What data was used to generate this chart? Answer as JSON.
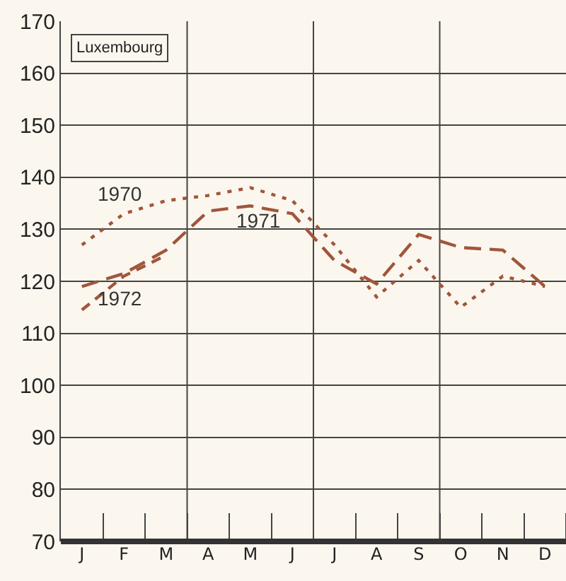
{
  "chart_data": {
    "type": "line",
    "title": "Luxembourg",
    "categories": [
      "J",
      "F",
      "M",
      "A",
      "M",
      "J",
      "J",
      "A",
      "S",
      "O",
      "N",
      "D"
    ],
    "series": [
      {
        "name": "1970",
        "color": "#a0563c",
        "line_style": "dotted",
        "values": [
          127,
          133,
          135.5,
          136.5,
          138,
          135.5,
          127,
          117,
          124,
          115,
          121,
          119
        ]
      },
      {
        "name": "1971",
        "color": "#a0563c",
        "line_style": "dashed",
        "values": [
          119,
          121.5,
          126,
          133.5,
          134.5,
          133,
          124,
          119.5,
          129,
          126.5,
          126,
          119
        ]
      },
      {
        "name": "1972",
        "color": "#a0563c",
        "line_style": "dashed",
        "values": [
          114.5,
          121,
          125,
          null,
          null,
          null,
          null,
          null,
          null,
          null,
          null,
          null
        ]
      }
    ],
    "ylim": [
      70,
      170
    ],
    "yticks": [
      70,
      80,
      90,
      100,
      110,
      120,
      130,
      140,
      150,
      160,
      170
    ],
    "grid": "y",
    "legend": false,
    "marker": "none"
  }
}
